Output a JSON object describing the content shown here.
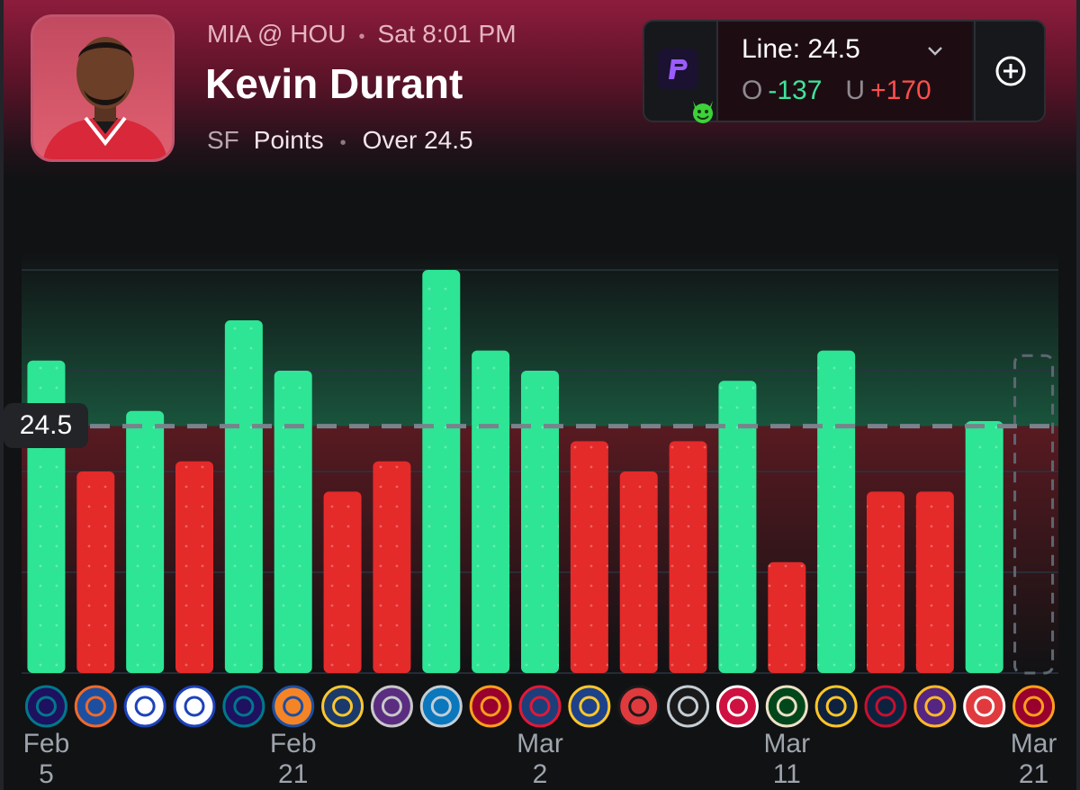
{
  "header": {
    "matchup": "MIA @ HOU",
    "game_time": "Sat 8:01 PM",
    "player_name": "Kevin Durant",
    "position": "SF",
    "stat": "Points",
    "pick": "Over 24.5"
  },
  "line_box": {
    "line_label": "Line: 24.5",
    "over_prefix": "O",
    "over_odds": "-137",
    "under_prefix": "U",
    "under_odds": "+170",
    "book_icon": "prizepicks-logo",
    "badge_icon": "devil-emoji-icon",
    "add_icon": "plus-circle-icon",
    "dropdown_icon": "chevron-down-icon"
  },
  "chart_data": {
    "type": "bar",
    "line_value": 24.5,
    "line_label": "24.5",
    "ylim": [
      0,
      40
    ],
    "grid": true,
    "colors": {
      "over": "#2ee595",
      "under": "#e52a2a"
    },
    "bars": [
      {
        "opponent": "hornets-logo",
        "value": 31
      },
      {
        "opponent": "thunder-logo",
        "value": 20
      },
      {
        "opponent": "clippers-logo",
        "value": 26
      },
      {
        "opponent": "clippers-logo",
        "value": 21
      },
      {
        "opponent": "hornets-logo",
        "value": 35
      },
      {
        "opponent": "knicks-logo",
        "value": 30
      },
      {
        "opponent": "jazz-logo",
        "value": 18
      },
      {
        "opponent": "kings-logo",
        "value": 21
      },
      {
        "opponent": "magic-logo",
        "value": 40
      },
      {
        "opponent": "heat-logo",
        "value": 32
      },
      {
        "opponent": "wizards-logo",
        "value": 30
      },
      {
        "opponent": "warriors-logo",
        "value": 23
      },
      {
        "opponent": "trail-blazers-logo",
        "value": 20
      },
      {
        "opponent": "spurs-logo",
        "value": 23
      },
      {
        "opponent": "raptors-logo",
        "value": 29
      },
      {
        "opponent": "bucks-logo",
        "value": 11
      },
      {
        "opponent": "nuggets-logo",
        "value": 32
      },
      {
        "opponent": "pelicans-logo",
        "value": 18
      },
      {
        "opponent": "lakers-logo",
        "value": 18
      },
      {
        "opponent": "hawks-logo",
        "value": 25
      }
    ],
    "upcoming": {
      "opponent": "heat-logo"
    },
    "date_labels": [
      {
        "month": "Feb",
        "day": "5",
        "index": 0
      },
      {
        "month": "Feb",
        "day": "21",
        "index": 5
      },
      {
        "month": "Mar",
        "day": "2",
        "index": 10
      },
      {
        "month": "Mar",
        "day": "11",
        "index": 15
      },
      {
        "month": "Mar",
        "day": "21",
        "index": 20
      }
    ]
  }
}
